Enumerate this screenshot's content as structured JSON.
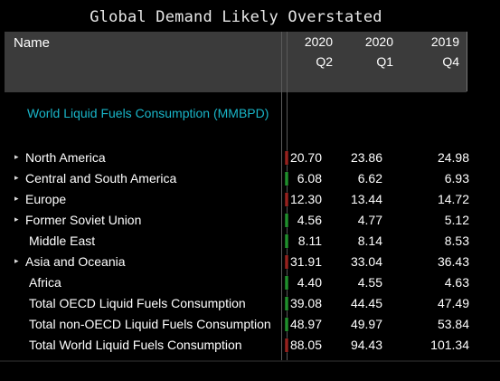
{
  "title": "Global Demand Likely Overstated",
  "header": {
    "name": "Name",
    "columns": [
      {
        "year": "2020",
        "quarter": "Q2"
      },
      {
        "year": "2020",
        "quarter": "Q1"
      },
      {
        "year": "2019",
        "quarter": "Q4"
      }
    ]
  },
  "section_title": "World Liquid Fuels Consumption (MMBPD)",
  "rows": [
    {
      "label": "North America",
      "expandable": true,
      "spark": "red",
      "v": [
        "20.70",
        "23.86",
        "24.98"
      ]
    },
    {
      "label": "Central and South America",
      "expandable": true,
      "spark": "green",
      "v": [
        "6.08",
        "6.62",
        "6.93"
      ]
    },
    {
      "label": "Europe",
      "expandable": true,
      "spark": "red",
      "v": [
        "12.30",
        "13.44",
        "14.72"
      ]
    },
    {
      "label": "Former Soviet Union",
      "expandable": true,
      "spark": "green",
      "v": [
        "4.56",
        "4.77",
        "5.12"
      ]
    },
    {
      "label": "Middle East",
      "expandable": false,
      "spark": "green",
      "v": [
        "8.11",
        "8.14",
        "8.53"
      ]
    },
    {
      "label": "Asia and Oceania",
      "expandable": true,
      "spark": "red",
      "v": [
        "31.91",
        "33.04",
        "36.43"
      ]
    },
    {
      "label": "Africa",
      "expandable": false,
      "spark": "green",
      "v": [
        "4.40",
        "4.55",
        "4.63"
      ]
    },
    {
      "label": "Total OECD Liquid Fuels Consumption",
      "expandable": false,
      "spark": "green",
      "v": [
        "39.08",
        "44.45",
        "47.49"
      ]
    },
    {
      "label": "Total non-OECD Liquid Fuels Consumption",
      "expandable": false,
      "spark": "green",
      "v": [
        "48.97",
        "49.97",
        "53.84"
      ]
    },
    {
      "label": "Total World Liquid Fuels Consumption",
      "expandable": false,
      "spark": "red",
      "v": [
        "88.05",
        "94.43",
        "101.34"
      ]
    }
  ],
  "colors": {
    "red": "#d8312b",
    "green": "#2ecc40",
    "accent": "#19b6c9",
    "header_bg": "#3b3b3b"
  }
}
